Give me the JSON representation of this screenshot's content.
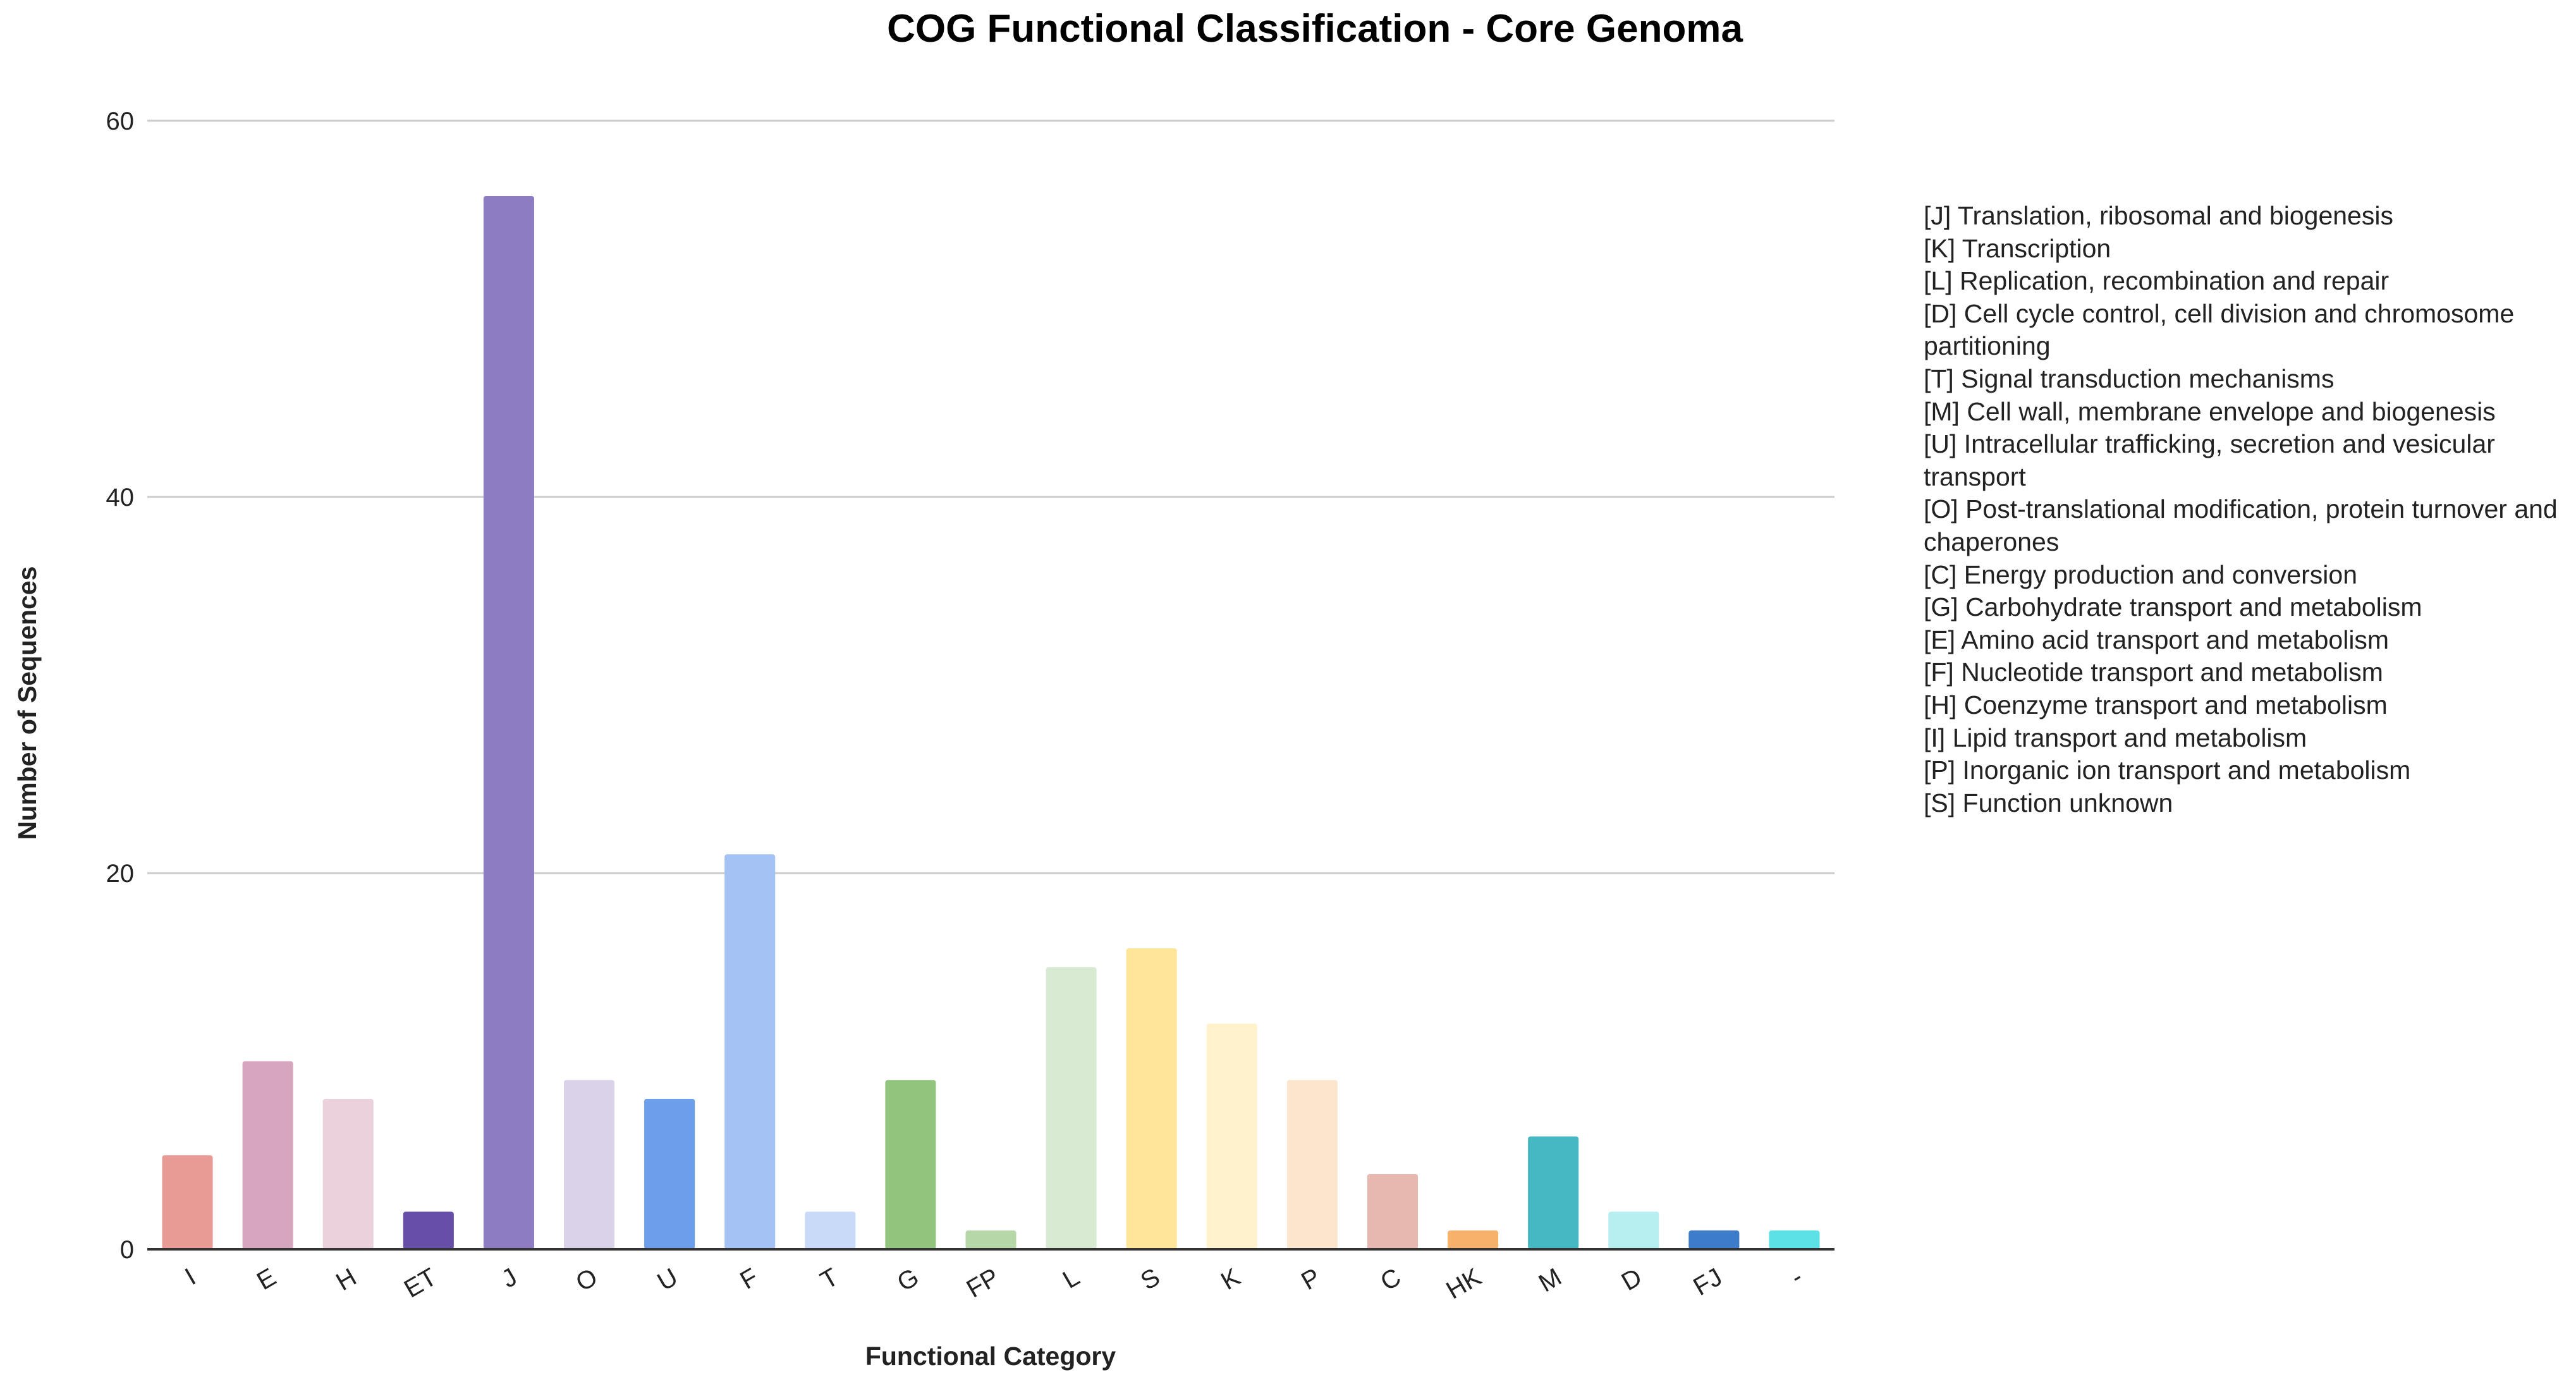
{
  "chart_data": {
    "type": "bar",
    "title": "COG Functional Classification - Core Genoma",
    "xlabel": "Functional Category",
    "ylabel": "Number of Sequences",
    "ylim": [
      0,
      60
    ],
    "yticks": [
      0,
      20,
      40,
      60
    ],
    "grid": true,
    "legend_position": "right",
    "categories": [
      "I",
      "E",
      "H",
      "ET",
      "J",
      "O",
      "U",
      "F",
      "T",
      "G",
      "FP",
      "L",
      "S",
      "K",
      "P",
      "C",
      "HK",
      "M",
      "D",
      "FJ",
      "-"
    ],
    "values": [
      5,
      10,
      8,
      2,
      56,
      9,
      8,
      21,
      2,
      9,
      1,
      15,
      16,
      12,
      9,
      4,
      1,
      6,
      2,
      1,
      1
    ],
    "colors": [
      "#E89A95",
      "#D5A6BD",
      "#EAD1DC",
      "#674EA7",
      "#8E7CC3",
      "#D9D2E9",
      "#6D9EEB",
      "#A4C2F4",
      "#C9DAF8",
      "#93C47D",
      "#B6D7A8",
      "#D9EAD3",
      "#FFE599",
      "#FFF2CC",
      "#FCE5CD",
      "#E6B8AF",
      "#F6B26B",
      "#45B8C4",
      "#B7EFF0",
      "#3D7CC9",
      "#5CE1E6"
    ],
    "legend": [
      "[J] Translation, ribosomal and biogenesis",
      "[K] Transcription",
      "[L] Replication, recombination and repair",
      "[D] Cell cycle control, cell division and chromosome partitioning",
      "[T] Signal transduction mechanisms",
      "[M] Cell wall, membrane envelope and biogenesis",
      "[U] Intracellular trafficking, secretion and vesicular transport",
      "[O] Post-translational modification, protein turnover and chaperones",
      "[C] Energy production and conversion",
      "[G] Carbohydrate transport and metabolism",
      "[E] Amino acid transport and metabolism",
      "[F] Nucleotide transport and metabolism",
      "[H] Coenzyme transport and metabolism",
      "[I] Lipid transport and metabolism",
      "[P] Inorganic ion transport and metabolism",
      "[S] Function unknown"
    ]
  }
}
